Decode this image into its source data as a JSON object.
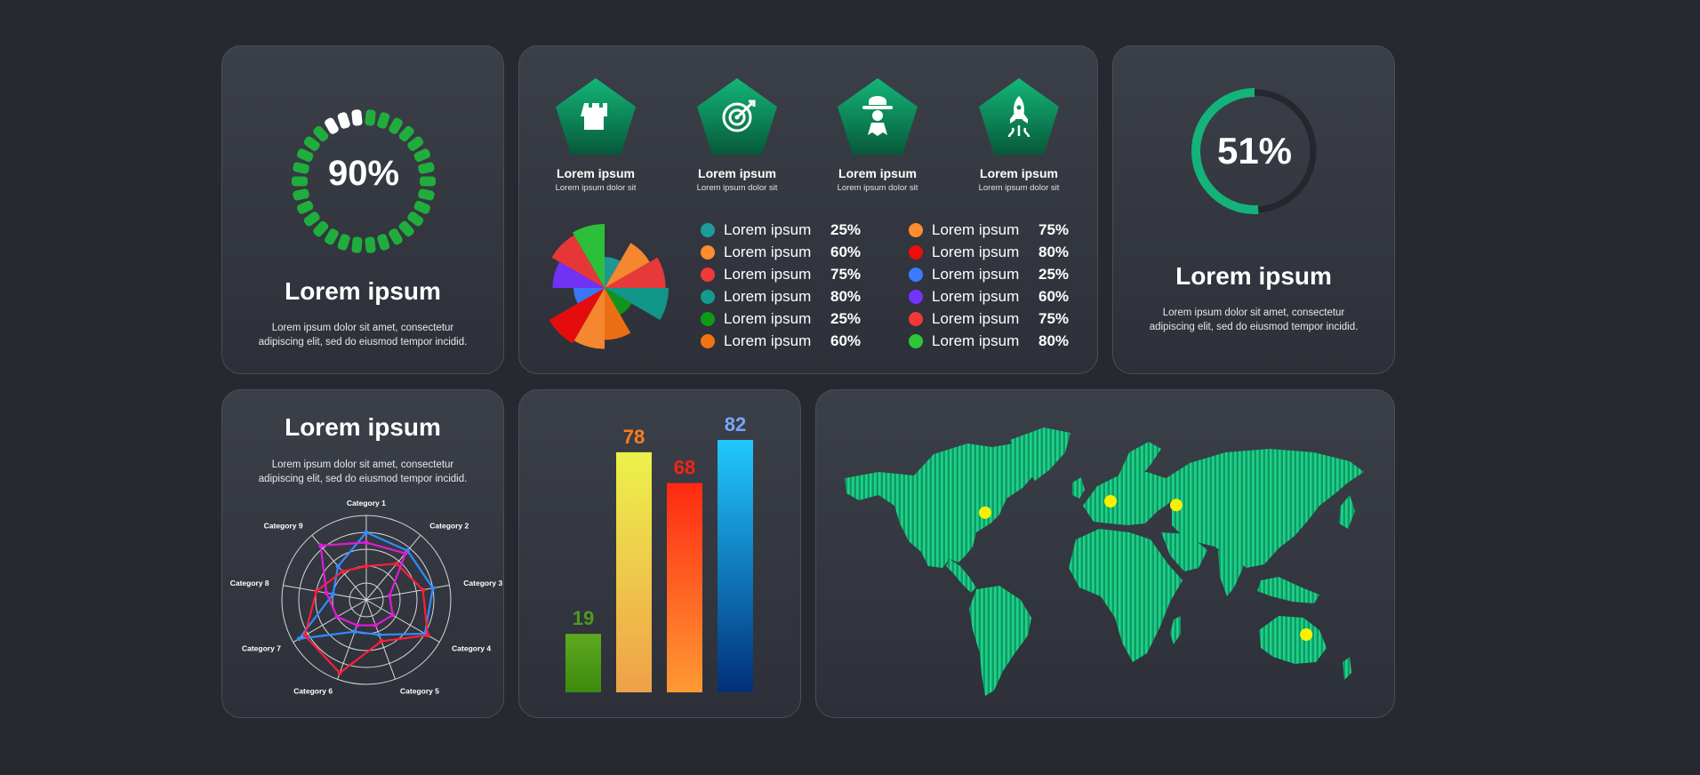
{
  "progress_card": {
    "value_label": "90%",
    "progress_percent": 90,
    "title": "Lorem ipsum",
    "text_line1": "Lorem ipsum dolor sit amet, consectetur",
    "text_line2": "adipiscing elit, sed do eiusmod tempor incidid.",
    "active_color": "#1fae3c",
    "inactive_color": "#ffffff"
  },
  "features": [
    {
      "icon": "castle-icon",
      "title": "Lorem ipsum",
      "subtitle": "Lorem ipsum dolor sit"
    },
    {
      "icon": "target-icon",
      "title": "Lorem ipsum",
      "subtitle": "Lorem ipsum dolor sit"
    },
    {
      "icon": "chef-icon",
      "title": "Lorem ipsum",
      "subtitle": "Lorem ipsum dolor sit"
    },
    {
      "icon": "rocket-icon",
      "title": "Lorem ipsum",
      "subtitle": "Lorem ipsum dolor sit"
    }
  ],
  "legend": [
    {
      "label": "Lorem ipsum",
      "value": "25%",
      "color": "#1d9c9a"
    },
    {
      "label": "Lorem ipsum",
      "value": "60%",
      "color": "#ff8c2e"
    },
    {
      "label": "Lorem ipsum",
      "value": "75%",
      "color": "#f23a3a"
    },
    {
      "label": "Lorem ipsum",
      "value": "80%",
      "color": "#109c8c"
    },
    {
      "label": "Lorem ipsum",
      "value": "25%",
      "color": "#0f9a18"
    },
    {
      "label": "Lorem ipsum",
      "value": "60%",
      "color": "#f57212"
    },
    {
      "label": "Lorem ipsum",
      "value": "75%",
      "color": "#ff8c2e"
    },
    {
      "label": "Lorem ipsum",
      "value": "80%",
      "color": "#ee0c0c"
    },
    {
      "label": "Lorem ipsum",
      "value": "25%",
      "color": "#3b7bff"
    },
    {
      "label": "Lorem ipsum",
      "value": "60%",
      "color": "#7433ff"
    },
    {
      "label": "Lorem ipsum",
      "value": "75%",
      "color": "#f03838"
    },
    {
      "label": "Lorem ipsum",
      "value": "80%",
      "color": "#2cc83a"
    }
  ],
  "percent_card": {
    "value_label": "51%",
    "progress_percent": 51,
    "title": "Lorem ipsum",
    "text_line1": "Lorem ipsum dolor sit amet, consectetur",
    "text_line2": "adipiscing elit, sed do eiusmod tempor incidid.",
    "arc_color": "#13b37a",
    "track_color": "#24272d"
  },
  "radar_card": {
    "title": "Lorem ipsum",
    "text_line1": "Lorem ipsum dolor sit amet, consectetur",
    "text_line2": "adipiscing elit, sed do eiusmod tempor incidid."
  },
  "map_card": {
    "land_color": "#13b574",
    "marker_color": "#f7f000"
  },
  "chart_data": [
    {
      "type": "pie",
      "variant": "rose",
      "values": [
        25,
        60,
        75,
        80,
        25,
        60,
        75,
        80,
        25,
        60,
        75,
        80
      ],
      "colors": [
        "#1d9c9a",
        "#ff8c2e",
        "#f23a3a",
        "#109c8c",
        "#0f9a18",
        "#f57212",
        "#ff8c2e",
        "#ee0c0c",
        "#3b7bff",
        "#7433ff",
        "#f03838",
        "#2cc83a"
      ]
    },
    {
      "type": "radar",
      "categories": [
        "Category 1",
        "Category 2",
        "Category 3",
        "Category 4",
        "Category 5",
        "Category 6",
        "Category 7",
        "Category 8",
        "Category 9"
      ],
      "rmax": 5,
      "series": [
        {
          "color": "#2f8cff",
          "values": [
            4,
            3.8,
            4,
            4,
            2.2,
            2,
            4.6,
            2,
            2.6
          ]
        },
        {
          "color": "#ff1e3c",
          "values": [
            2,
            2.8,
            3.4,
            4.2,
            2.6,
            4.6,
            4.2,
            3,
            2.2
          ]
        },
        {
          "color": "#e01ad8",
          "values": [
            3.4,
            3.6,
            1.4,
            1.8,
            1.6,
            1.6,
            2,
            2.4,
            4.2
          ]
        }
      ]
    },
    {
      "type": "bar",
      "values": [
        19,
        78,
        68,
        82
      ],
      "ylim": [
        0,
        82
      ],
      "gradients": [
        [
          "#5fa91e",
          "#3c8a10"
        ],
        [
          "#ecf24a",
          "#f0a04a"
        ],
        [
          "#ff2a12",
          "#ff9a34"
        ],
        [
          "#22c8ff",
          "#00307a"
        ]
      ],
      "label_colors": [
        "#4f9a1f",
        "#ff7e1c",
        "#f42414",
        "#78a6ff"
      ]
    },
    {
      "type": "map",
      "markers": [
        {
          "lon": -77,
          "lat": 39
        },
        {
          "lon": 5,
          "lat": 45
        },
        {
          "lon": 48,
          "lat": 43
        },
        {
          "lon": 133,
          "lat": -25
        }
      ]
    }
  ]
}
